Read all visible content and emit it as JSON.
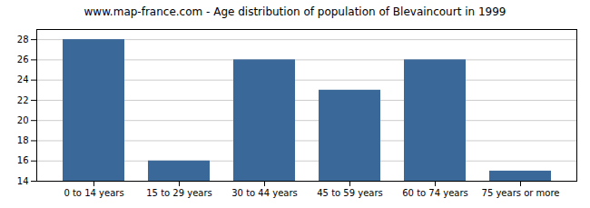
{
  "chart_data": {
    "type": "bar",
    "title": "www.map-france.com - Age distribution of population of Blevaincourt in 1999",
    "categories": [
      "0 to 14 years",
      "15 to 29 years",
      "30 to 44 years",
      "45 to 59 years",
      "60 to 74 years",
      "75 years or more"
    ],
    "values": [
      28,
      16,
      26,
      23,
      26,
      15
    ],
    "color": "#3a6898",
    "ylim": [
      14,
      29
    ],
    "yticks": [
      14,
      16,
      18,
      20,
      22,
      24,
      26,
      28
    ],
    "grid": true
  }
}
